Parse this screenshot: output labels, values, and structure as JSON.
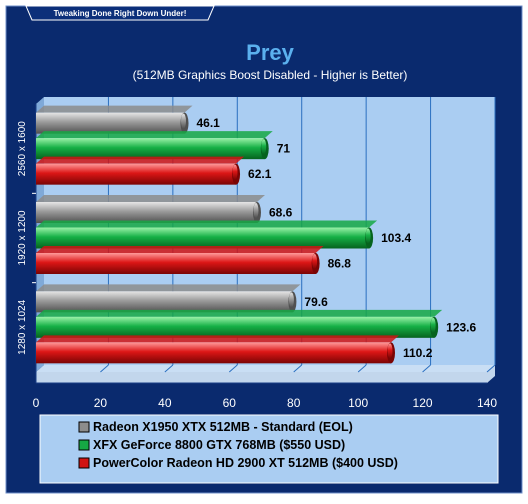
{
  "banner": "Tweaking Done Right Down Under!",
  "colors": {
    "outer_bg": "#0a2a6e",
    "plot_bg": "#aacdf2",
    "legend_bg": "#aacdf2",
    "title": "#5bb0ee",
    "grid": "#2a6fc0"
  },
  "chart_data": {
    "type": "bar",
    "orientation": "horizontal",
    "title": "Prey",
    "subtitle": "(512MB Graphics Boost Disabled - Higher is Better)",
    "categories": [
      "2560 x 1600",
      "1920 x 1200",
      "1280 x 1024"
    ],
    "series": [
      {
        "name": "Radeon X1950 XTX 512MB - Standard (EOL)",
        "color": "#8c8c8c",
        "values": [
          46.1,
          68.6,
          79.6
        ]
      },
      {
        "name": "XFX GeForce 8800 GTX 768MB ($550 USD)",
        "color": "#16a844",
        "values": [
          71,
          103.4,
          123.6
        ]
      },
      {
        "name": "PowerColor Radeon HD 2900 XT 512MB ($400 USD)",
        "color": "#d01414",
        "values": [
          62.1,
          86.8,
          110.2
        ]
      }
    ],
    "value_labels": [
      [
        "46.1",
        "71",
        "62.1"
      ],
      [
        "68.6",
        "103.4",
        "86.8"
      ],
      [
        "79.6",
        "123.6",
        "110.2"
      ]
    ],
    "xlim": [
      0,
      140
    ],
    "xticks": [
      0,
      20,
      40,
      60,
      80,
      100,
      120,
      140
    ],
    "grid": true,
    "legend": "bottom"
  }
}
